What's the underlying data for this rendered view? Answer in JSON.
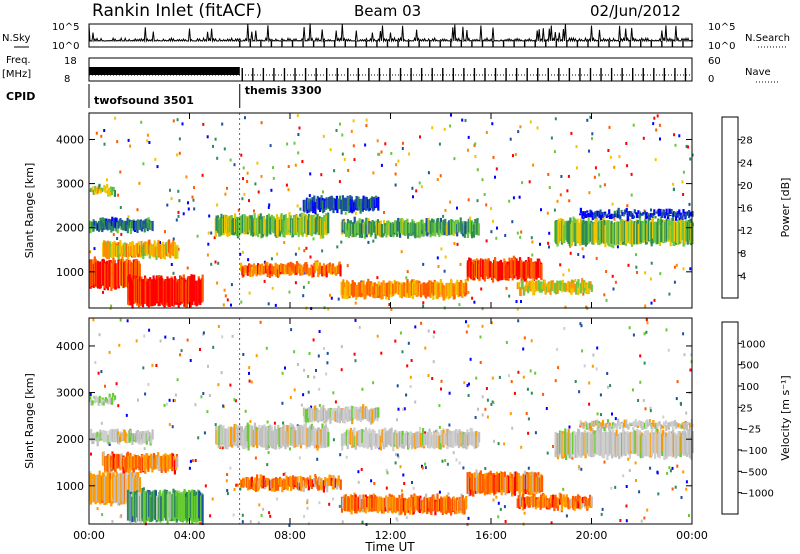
{
  "header": {
    "station": "Rankin Inlet (fitACF)",
    "beam": "Beam 03",
    "date": "02/Jun/2012"
  },
  "noise_panel": {
    "left_label": "N.Sky",
    "right_label": "N.Search",
    "left_ticks": [
      "10^5",
      "10^0"
    ],
    "right_ticks": [
      "10^5",
      "10^0"
    ]
  },
  "freq_panel": {
    "left_label_1": "Freq.",
    "left_label_2": "[MHz]",
    "right_label": "Nave",
    "left_ticks": [
      "18",
      "8"
    ],
    "right_ticks": [
      "60",
      "0"
    ]
  },
  "cpid": {
    "label": "CPID",
    "modes": [
      {
        "name": "twofsound 3501",
        "start_hour": 0,
        "end_hour": 6
      },
      {
        "name": "themis 3300",
        "start_hour": 6,
        "end_hour": 24
      }
    ]
  },
  "colors": {
    "power": [
      "#0000ff",
      "#1e4fa0",
      "#2e8b57",
      "#6cc640",
      "#f2c400",
      "#ff8c00",
      "#ff5a00",
      "#ff0000"
    ],
    "velocity": [
      "#ff0000",
      "#ff5a00",
      "#ff9a00",
      "#bfbfbf",
      "#cfcfcf",
      "#66cc33",
      "#2e8b57",
      "#1e4fa0",
      "#0000ff"
    ]
  },
  "chart_data": [
    {
      "type": "heatmap",
      "name": "power-panel",
      "ylabel": "Slant Range [km]",
      "xlim": [
        0,
        24
      ],
      "ylim": [
        180,
        4600
      ],
      "yticks": [
        "1000",
        "2000",
        "3000",
        "4000"
      ],
      "xticks": [
        "00:00",
        "04:00",
        "08:00",
        "12:00",
        "16:00",
        "20:00",
        "00:00"
      ],
      "colorbar": {
        "label": "Power [dB]",
        "ticks": [
          "4",
          "8",
          "12",
          "16",
          "20",
          "24",
          "28"
        ],
        "range": [
          0,
          32
        ]
      },
      "bands": [
        {
          "t0": 0.0,
          "t1": 2.0,
          "r0": 600,
          "r1": 1300,
          "level": 28
        },
        {
          "t0": 1.5,
          "t1": 4.5,
          "r0": 200,
          "r1": 900,
          "level": 30
        },
        {
          "t0": 0.5,
          "t1": 3.5,
          "r0": 1300,
          "r1": 1700,
          "level": 20
        },
        {
          "t0": 0.0,
          "t1": 2.5,
          "r0": 1900,
          "r1": 2200,
          "level": 8
        },
        {
          "t0": 0.0,
          "t1": 1.0,
          "r0": 2750,
          "r1": 2950,
          "level": 16
        },
        {
          "t0": 5.0,
          "t1": 9.5,
          "r0": 1800,
          "r1": 2300,
          "level": 14
        },
        {
          "t0": 6.0,
          "t1": 10.0,
          "r0": 900,
          "r1": 1200,
          "level": 24
        },
        {
          "t0": 8.5,
          "t1": 11.5,
          "r0": 2350,
          "r1": 2700,
          "level": 6
        },
        {
          "t0": 10.0,
          "t1": 15.5,
          "r0": 1800,
          "r1": 2200,
          "level": 12
        },
        {
          "t0": 10.0,
          "t1": 15.0,
          "r0": 400,
          "r1": 800,
          "level": 22
        },
        {
          "t0": 15.0,
          "t1": 18.0,
          "r0": 800,
          "r1": 1300,
          "level": 28
        },
        {
          "t0": 17.0,
          "t1": 20.0,
          "r0": 500,
          "r1": 800,
          "level": 18
        },
        {
          "t0": 18.5,
          "t1": 24.0,
          "r0": 1600,
          "r1": 2200,
          "level": 14
        },
        {
          "t0": 19.5,
          "t1": 24.0,
          "r0": 2200,
          "r1": 2400,
          "level": 4
        }
      ]
    },
    {
      "type": "heatmap",
      "name": "velocity-panel",
      "ylabel": "Slant Range [km]",
      "xlabel": "Time UT",
      "xlim": [
        0,
        24
      ],
      "ylim": [
        180,
        4600
      ],
      "yticks": [
        "1000",
        "2000",
        "3000",
        "4000"
      ],
      "xticks": [
        "00:00",
        "04:00",
        "08:00",
        "12:00",
        "16:00",
        "20:00",
        "00:00"
      ],
      "colorbar": {
        "label": "Velocity [m s⁻¹]",
        "ticks": [
          "1000",
          "500",
          "100",
          "25",
          "−25",
          "−100",
          "−500",
          "−1000"
        ]
      },
      "bands": [
        {
          "t0": 0.0,
          "t1": 2.0,
          "r0": 600,
          "r1": 1300,
          "level": 3
        },
        {
          "t0": 1.5,
          "t1": 4.5,
          "r0": 200,
          "r1": 900,
          "level": 6
        },
        {
          "t0": 0.5,
          "t1": 3.5,
          "r0": 1300,
          "r1": 1700,
          "level": 2
        },
        {
          "t0": 0.0,
          "t1": 2.5,
          "r0": 1900,
          "r1": 2200,
          "level": 4
        },
        {
          "t0": 0.0,
          "t1": 1.0,
          "r0": 2750,
          "r1": 2950,
          "level": 5
        },
        {
          "t0": 5.0,
          "t1": 9.5,
          "r0": 1800,
          "r1": 2300,
          "level": 4
        },
        {
          "t0": 6.0,
          "t1": 10.0,
          "r0": 900,
          "r1": 1200,
          "level": 2
        },
        {
          "t0": 8.5,
          "t1": 11.5,
          "r0": 2350,
          "r1": 2700,
          "level": 4
        },
        {
          "t0": 10.0,
          "t1": 15.5,
          "r0": 1800,
          "r1": 2200,
          "level": 4
        },
        {
          "t0": 10.0,
          "t1": 15.0,
          "r0": 400,
          "r1": 800,
          "level": 2
        },
        {
          "t0": 15.0,
          "t1": 18.0,
          "r0": 800,
          "r1": 1300,
          "level": 2
        },
        {
          "t0": 17.0,
          "t1": 20.0,
          "r0": 500,
          "r1": 800,
          "level": 2
        },
        {
          "t0": 18.5,
          "t1": 24.0,
          "r0": 1600,
          "r1": 2200,
          "level": 4
        },
        {
          "t0": 19.5,
          "t1": 24.0,
          "r0": 2200,
          "r1": 2400,
          "level": 4
        }
      ]
    }
  ]
}
